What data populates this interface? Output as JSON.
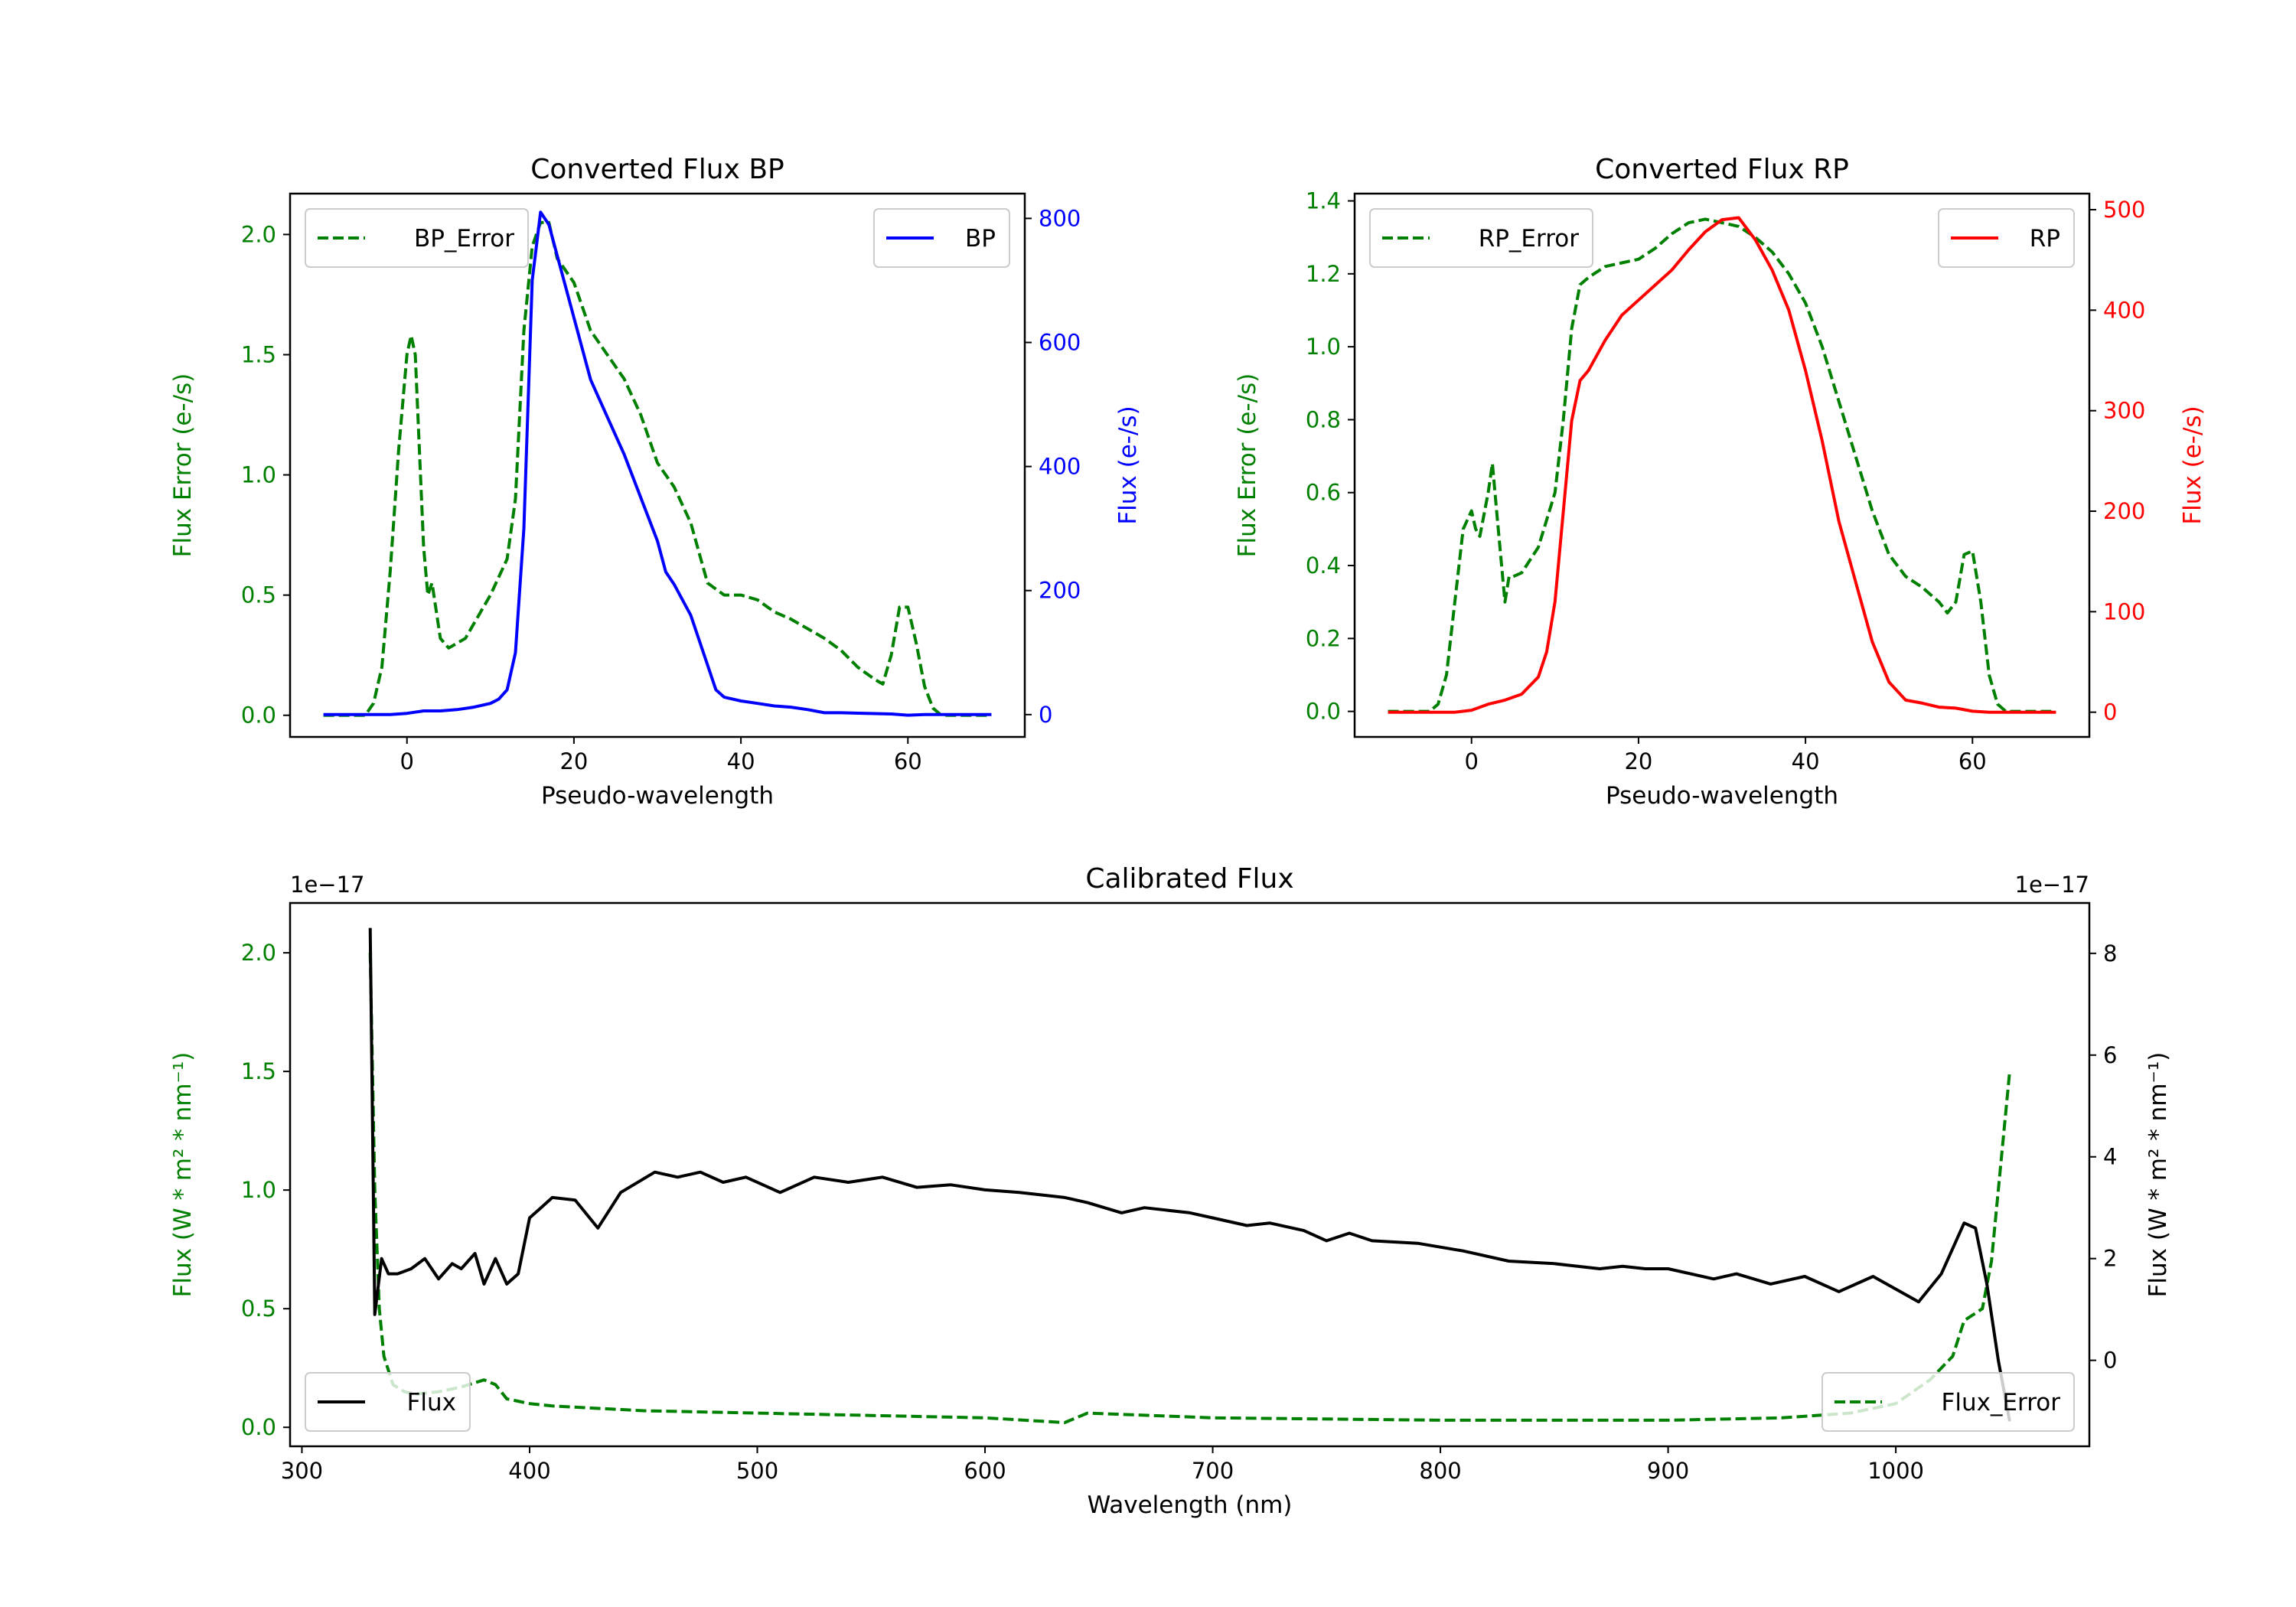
{
  "chart_data": [
    {
      "type": "line",
      "title": "Converted Flux BP",
      "xlabel": "Pseudo-wavelength",
      "xlim": [
        -14,
        74
      ],
      "xticks": [
        0,
        20,
        40,
        60
      ],
      "xtick_labels": [
        "0",
        "20",
        "40",
        "60"
      ],
      "left_axis": {
        "label": "Flux Error (e-/s)",
        "color": "#008000",
        "ylim": [
          -0.09,
          2.17
        ],
        "ticks": [
          0,
          0.5,
          1.0,
          1.5,
          2.0
        ],
        "tick_labels": [
          "0.0",
          "0.5",
          "1.0",
          "1.5",
          "2.0"
        ]
      },
      "right_axis": {
        "label": "Flux (e-/s)",
        "color": "#0000ff",
        "ylim": [
          -36,
          840
        ],
        "ticks": [
          0,
          200,
          400,
          600,
          800
        ],
        "tick_labels": [
          "0",
          "200",
          "400",
          "600",
          "800"
        ]
      },
      "series": [
        {
          "name": "BP_Error",
          "axis": "left",
          "color": "#008000",
          "style": "dashed",
          "legend": "upper-left",
          "x": [
            -10,
            -5,
            -4,
            -3,
            -2,
            -1,
            0,
            0.5,
            1,
            2,
            2.5,
            3,
            4,
            5,
            6,
            7,
            8,
            10,
            12,
            13,
            14,
            15,
            16,
            17,
            18,
            20,
            22,
            24,
            26,
            28,
            30,
            32,
            34,
            36,
            38,
            40,
            42,
            44,
            46,
            48,
            50,
            52,
            54,
            56,
            57,
            58,
            59,
            60,
            61,
            62,
            63,
            64,
            70
          ],
          "y": [
            0,
            0,
            0.05,
            0.2,
            0.6,
            1.1,
            1.5,
            1.58,
            1.5,
            0.7,
            0.5,
            0.55,
            0.32,
            0.28,
            0.3,
            0.32,
            0.38,
            0.5,
            0.65,
            0.9,
            1.6,
            1.95,
            2.05,
            2.05,
            1.9,
            1.8,
            1.6,
            1.5,
            1.4,
            1.25,
            1.05,
            0.95,
            0.8,
            0.55,
            0.5,
            0.5,
            0.48,
            0.43,
            0.4,
            0.36,
            0.32,
            0.27,
            0.2,
            0.15,
            0.13,
            0.25,
            0.45,
            0.45,
            0.3,
            0.12,
            0.03,
            0,
            0
          ]
        },
        {
          "name": "BP",
          "axis": "right",
          "color": "#0000ff",
          "style": "solid",
          "legend": "upper-right",
          "x": [
            -10,
            -5,
            -2,
            0,
            2,
            4,
            6,
            8,
            10,
            11,
            12,
            13,
            14,
            15,
            16,
            17,
            18,
            20,
            22,
            24,
            26,
            28,
            30,
            31,
            32,
            34,
            36,
            37,
            38,
            40,
            42,
            44,
            46,
            48,
            50,
            52,
            55,
            58,
            60,
            62,
            65,
            70
          ],
          "y": [
            0,
            0,
            0,
            2,
            6,
            6,
            8,
            12,
            18,
            25,
            40,
            100,
            300,
            700,
            810,
            790,
            740,
            640,
            540,
            480,
            420,
            350,
            280,
            230,
            210,
            160,
            80,
            40,
            28,
            22,
            18,
            14,
            12,
            8,
            3,
            3,
            2,
            1,
            -1,
            0,
            0,
            0
          ]
        }
      ]
    },
    {
      "type": "line",
      "title": "Converted Flux RP",
      "xlabel": "Pseudo-wavelength",
      "xlim": [
        -14,
        74
      ],
      "xticks": [
        0,
        20,
        40,
        60
      ],
      "xtick_labels": [
        "0",
        "20",
        "40",
        "60"
      ],
      "left_axis": {
        "label": "Flux Error (e-/s)",
        "color": "#008000",
        "ylim": [
          -0.07,
          1.42
        ],
        "ticks": [
          0,
          0.2,
          0.4,
          0.6,
          0.8,
          1.0,
          1.2,
          1.4
        ],
        "tick_labels": [
          "0.0",
          "0.2",
          "0.4",
          "0.6",
          "0.8",
          "1.0",
          "1.2",
          "1.4"
        ]
      },
      "right_axis": {
        "label": "Flux (e-/s)",
        "color": "#ff0000",
        "ylim": [
          -24.6,
          516
        ],
        "ticks": [
          0,
          100,
          200,
          300,
          400,
          500
        ],
        "tick_labels": [
          "0",
          "100",
          "200",
          "300",
          "400",
          "500"
        ]
      },
      "series": [
        {
          "name": "RP_Error",
          "axis": "left",
          "color": "#008000",
          "style": "dashed",
          "legend": "upper-left",
          "x": [
            -10,
            -5,
            -4,
            -3,
            -2,
            -1,
            0,
            0.5,
            1,
            2,
            2.5,
            3,
            4,
            4.5,
            5,
            6,
            8,
            10,
            11,
            12,
            13,
            14,
            16,
            18,
            20,
            22,
            24,
            26,
            28,
            30,
            32,
            34,
            36,
            38,
            40,
            42,
            44,
            46,
            48,
            50,
            52,
            54,
            55,
            56,
            57,
            58,
            59,
            60,
            61,
            62,
            63,
            64,
            70
          ],
          "y": [
            0,
            0,
            0.02,
            0.1,
            0.3,
            0.5,
            0.55,
            0.5,
            0.48,
            0.6,
            0.68,
            0.55,
            0.3,
            0.37,
            0.37,
            0.38,
            0.45,
            0.6,
            0.8,
            1.05,
            1.17,
            1.19,
            1.22,
            1.23,
            1.24,
            1.27,
            1.31,
            1.34,
            1.35,
            1.34,
            1.33,
            1.3,
            1.26,
            1.2,
            1.12,
            1.0,
            0.85,
            0.7,
            0.55,
            0.43,
            0.37,
            0.34,
            0.32,
            0.3,
            0.27,
            0.3,
            0.43,
            0.44,
            0.3,
            0.1,
            0.02,
            0,
            0
          ]
        },
        {
          "name": "RP",
          "axis": "right",
          "color": "#ff0000",
          "style": "solid",
          "legend": "upper-right",
          "x": [
            -10,
            -2,
            0,
            2,
            4,
            6,
            8,
            9,
            10,
            11,
            12,
            13,
            14,
            16,
            18,
            20,
            22,
            24,
            26,
            28,
            30,
            32,
            34,
            36,
            38,
            40,
            42,
            44,
            46,
            48,
            50,
            52,
            54,
            56,
            58,
            60,
            62,
            70
          ],
          "y": [
            0,
            0,
            2,
            8,
            12,
            18,
            35,
            60,
            110,
            200,
            290,
            330,
            340,
            370,
            395,
            410,
            425,
            440,
            460,
            478,
            490,
            492,
            470,
            440,
            400,
            340,
            270,
            190,
            130,
            70,
            30,
            12,
            9,
            5,
            4,
            1,
            0,
            0
          ]
        }
      ]
    },
    {
      "type": "line",
      "title": "Calibrated Flux",
      "xlabel": "Wavelength (nm)",
      "xlim": [
        294.8,
        1085
      ],
      "xticks": [
        300,
        400,
        500,
        600,
        700,
        800,
        900,
        1000
      ],
      "xtick_labels": [
        "300",
        "400",
        "500",
        "600",
        "700",
        "800",
        "900",
        "1000"
      ],
      "left_axis": {
        "label": "Flux (W * m² * nm⁻¹)",
        "color": "#008000",
        "ylim": [
          -0.08,
          2.21
        ],
        "offset_text": "1e−17",
        "ticks": [
          0,
          0.5,
          1.0,
          1.5,
          2.0
        ],
        "tick_labels": [
          "0.0",
          "0.5",
          "1.0",
          "1.5",
          "2.0"
        ]
      },
      "right_axis": {
        "label": "Flux (W * m² * nm⁻¹)",
        "color": "#000000",
        "ylim": [
          -1.69,
          8.99
        ],
        "offset_text": "1e−17",
        "ticks": [
          0,
          2,
          4,
          6,
          8
        ],
        "tick_labels": [
          "0",
          "2",
          "4",
          "6",
          "8"
        ]
      },
      "series": [
        {
          "name": "Flux_Error",
          "axis": "left",
          "color": "#008000",
          "style": "dashed",
          "legend": "lower-right",
          "x": [
            330,
            332,
            334,
            336,
            340,
            345,
            350,
            360,
            370,
            380,
            385,
            390,
            400,
            410,
            450,
            500,
            550,
            600,
            635,
            645,
            700,
            800,
            900,
            950,
            980,
            1000,
            1015,
            1025,
            1030,
            1038,
            1042,
            1046,
            1050
          ],
          "y": [
            2.0,
            1.0,
            0.5,
            0.3,
            0.18,
            0.15,
            0.14,
            0.15,
            0.17,
            0.2,
            0.18,
            0.12,
            0.1,
            0.09,
            0.07,
            0.06,
            0.05,
            0.04,
            0.02,
            0.06,
            0.04,
            0.03,
            0.03,
            0.04,
            0.06,
            0.1,
            0.2,
            0.3,
            0.45,
            0.5,
            0.7,
            1.1,
            1.5
          ]
        },
        {
          "name": "Flux",
          "axis": "right",
          "color": "#000000",
          "style": "solid",
          "legend": "lower-left",
          "x": [
            330,
            332,
            335,
            338,
            342,
            348,
            354,
            360,
            366,
            370,
            376,
            380,
            385,
            390,
            395,
            400,
            405,
            410,
            420,
            430,
            440,
            455,
            465,
            475,
            485,
            495,
            510,
            525,
            540,
            555,
            570,
            585,
            600,
            615,
            635,
            645,
            660,
            670,
            690,
            700,
            715,
            725,
            740,
            750,
            760,
            770,
            790,
            810,
            830,
            850,
            870,
            880,
            890,
            900,
            920,
            930,
            945,
            960,
            975,
            990,
            1010,
            1020,
            1030,
            1035,
            1040,
            1045,
            1050
          ],
          "y": [
            8.5,
            0.9,
            2.0,
            1.7,
            1.7,
            1.8,
            2.0,
            1.6,
            1.9,
            1.8,
            2.1,
            1.5,
            2.0,
            1.5,
            1.7,
            2.8,
            3.0,
            3.2,
            3.15,
            2.6,
            3.3,
            3.7,
            3.6,
            3.7,
            3.5,
            3.6,
            3.3,
            3.6,
            3.5,
            3.6,
            3.4,
            3.45,
            3.35,
            3.3,
            3.2,
            3.1,
            2.9,
            3.0,
            2.9,
            2.8,
            2.65,
            2.7,
            2.55,
            2.35,
            2.5,
            2.35,
            2.3,
            2.15,
            1.95,
            1.9,
            1.8,
            1.85,
            1.8,
            1.8,
            1.6,
            1.7,
            1.5,
            1.65,
            1.35,
            1.65,
            1.15,
            1.7,
            2.7,
            2.6,
            1.5,
            0.0,
            -1.2
          ]
        }
      ]
    }
  ]
}
